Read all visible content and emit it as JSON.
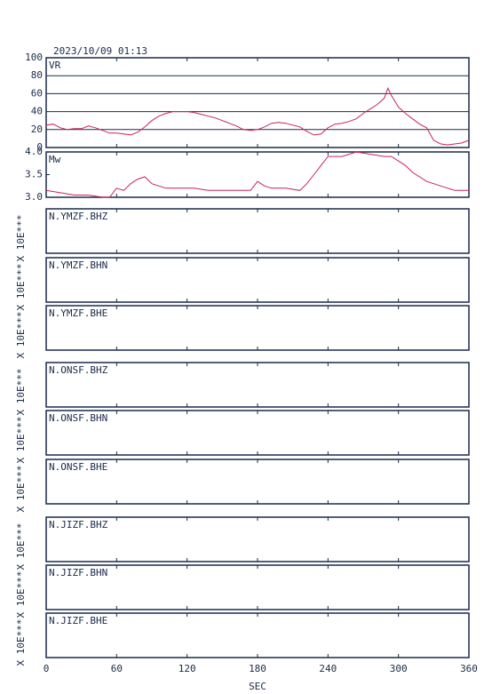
{
  "chart_data": [
    {
      "type": "line",
      "title": "2023/10/09 01:13",
      "ylabel": "VR",
      "color": "#cc2255",
      "grid": true,
      "xlim": [
        0,
        360
      ],
      "ylim": [
        0,
        100
      ],
      "yticks": [
        0,
        20,
        40,
        60,
        80,
        100
      ],
      "x": [
        0,
        6,
        12,
        18,
        24,
        30,
        36,
        42,
        48,
        54,
        60,
        66,
        72,
        78,
        84,
        90,
        96,
        102,
        108,
        114,
        120,
        126,
        132,
        138,
        144,
        150,
        156,
        162,
        168,
        174,
        180,
        186,
        192,
        198,
        204,
        210,
        216,
        222,
        228,
        234,
        240,
        246,
        252,
        258,
        264,
        270,
        276,
        282,
        288,
        291,
        294,
        300,
        306,
        312,
        318,
        324,
        330,
        336,
        342,
        348,
        354,
        360
      ],
      "values": [
        25,
        26,
        22,
        20,
        21,
        21,
        24,
        22,
        19,
        16,
        16,
        15,
        14,
        17,
        23,
        30,
        35,
        38,
        40,
        40,
        40,
        39,
        37,
        35,
        33,
        30,
        27,
        24,
        20,
        19,
        20,
        23,
        27,
        28,
        27,
        25,
        23,
        18,
        14,
        15,
        22,
        26,
        27,
        29,
        32,
        38,
        43,
        48,
        55,
        66,
        58,
        45,
        38,
        32,
        26,
        22,
        8,
        4,
        3,
        4,
        5,
        8
      ]
    },
    {
      "type": "line",
      "ylabel": "Mw",
      "color": "#cc2255",
      "grid": false,
      "xlim": [
        0,
        360
      ],
      "ylim": [
        3,
        4
      ],
      "yticks": [
        {
          "value": 3,
          "label": "3.0"
        },
        {
          "value": 3.5,
          "label": "3.5"
        },
        {
          "value": 4,
          "label": "4.0"
        }
      ],
      "x": [
        0,
        12,
        24,
        36,
        48,
        54,
        60,
        66,
        72,
        78,
        84,
        90,
        96,
        102,
        114,
        126,
        138,
        150,
        162,
        174,
        180,
        186,
        192,
        204,
        216,
        222,
        228,
        234,
        240,
        252,
        264,
        276,
        288,
        294,
        300,
        306,
        312,
        318,
        324,
        330,
        336,
        342,
        348,
        354,
        360
      ],
      "values": [
        3.15,
        3.1,
        3.05,
        3.05,
        3.0,
        3.0,
        3.2,
        3.15,
        3.3,
        3.4,
        3.45,
        3.3,
        3.25,
        3.2,
        3.2,
        3.2,
        3.15,
        3.15,
        3.15,
        3.15,
        3.35,
        3.25,
        3.2,
        3.2,
        3.15,
        3.3,
        3.5,
        3.7,
        3.9,
        3.9,
        4.0,
        3.95,
        3.9,
        3.9,
        3.8,
        3.7,
        3.55,
        3.45,
        3.35,
        3.3,
        3.25,
        3.2,
        3.15,
        3.15,
        3.15
      ]
    },
    {
      "type": "waveform",
      "title": "N.YMZF.BHZ",
      "ylabel": "X 10E***",
      "xlim": [
        0,
        360
      ]
    },
    {
      "type": "waveform",
      "title": "N.YMZF.BHN",
      "ylabel": "X 10E***",
      "xlim": [
        0,
        360
      ]
    },
    {
      "type": "waveform",
      "title": "N.YMZF.BHE",
      "ylabel": "X 10E***",
      "xlim": [
        0,
        360
      ]
    },
    {
      "type": "waveform",
      "title": "N.ONSF.BHZ",
      "ylabel": "X 10E***",
      "xlim": [
        0,
        360
      ]
    },
    {
      "type": "waveform",
      "title": "N.ONSF.BHN",
      "ylabel": "X 10E***",
      "xlim": [
        0,
        360
      ]
    },
    {
      "type": "waveform",
      "title": "N.ONSF.BHE",
      "ylabel": "X 10E***",
      "xlim": [
        0,
        360
      ]
    },
    {
      "type": "waveform",
      "title": "N.JIZF.BHZ",
      "ylabel": "X 10E***",
      "xlim": [
        0,
        360
      ]
    },
    {
      "type": "waveform",
      "title": "N.JIZF.BHN",
      "ylabel": "X 10E***",
      "xlim": [
        0,
        360
      ]
    },
    {
      "type": "waveform",
      "title": "N.JIZF.BHE",
      "ylabel": "X 10E***",
      "xlim": [
        0,
        360
      ],
      "xticks": [
        0,
        60,
        120,
        180,
        240,
        300,
        360
      ],
      "xlabel": "SEC"
    }
  ]
}
